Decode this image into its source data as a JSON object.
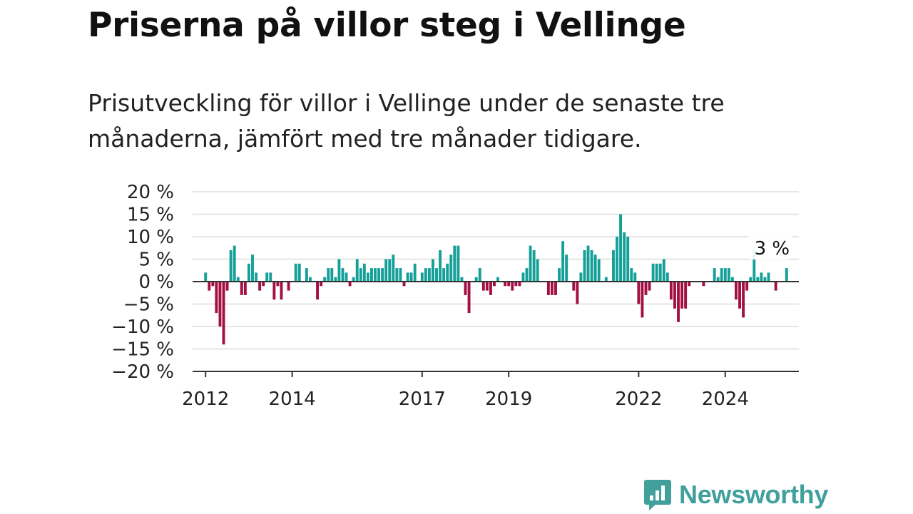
{
  "title": "Priserna på villor steg i Vellinge",
  "subtitle": "Prisutveckling för villor i Vellinge under de senaste tre månaderna, jämfört med tre månader tidigare.",
  "brand": {
    "name": "Newsworthy",
    "color": "#41a09b",
    "icon": "bar-chart-speech-bubble-icon"
  },
  "colors": {
    "positive": "#14a098",
    "negative": "#a30f42",
    "zero_line": "#333333",
    "grid": "#dddddd"
  },
  "chart_data": {
    "type": "bar",
    "ylim": [
      -20,
      20
    ],
    "yticks": [
      20,
      15,
      10,
      5,
      0,
      -5,
      -10,
      -15,
      -20
    ],
    "ytick_labels": [
      "20 %",
      "15 %",
      "10 %",
      "5 %",
      "0 %",
      "−5 %",
      "−10 %",
      "−15 %",
      "−20 %"
    ],
    "xticks": [
      "2012",
      "2014",
      "2017",
      "2019",
      "2022",
      "2024"
    ],
    "xlim_years": [
      2011.7,
      2025.7
    ],
    "annotation": {
      "text": "3 %",
      "year": 2025.08,
      "value": 3
    },
    "grid": true,
    "x_start_year": 2012,
    "values": [
      2,
      -2,
      -1,
      -7,
      -10,
      -14,
      -2,
      7,
      8,
      1,
      -3,
      -3,
      4,
      6,
      2,
      -2,
      -1,
      2,
      2,
      -4,
      -1,
      -4,
      0,
      -2,
      0,
      4,
      4,
      0,
      3,
      1,
      0,
      -4,
      -1,
      1,
      3,
      3,
      1,
      5,
      3,
      2,
      -1,
      1,
      5,
      3,
      4,
      2,
      3,
      3,
      3,
      3,
      5,
      5,
      6,
      3,
      3,
      -1,
      2,
      2,
      4,
      0,
      2,
      3,
      3,
      5,
      3,
      7,
      3,
      4,
      6,
      8,
      8,
      1,
      -3,
      -7,
      0,
      1,
      3,
      -2,
      -2,
      -3,
      -1,
      1,
      0,
      -1,
      -1,
      -2,
      -1,
      -1,
      2,
      3,
      8,
      7,
      5,
      0,
      0,
      -3,
      -3,
      -3,
      3,
      9,
      6,
      0,
      -2,
      -5,
      2,
      7,
      8,
      7,
      6,
      5,
      0,
      1,
      0,
      7,
      10,
      15,
      11,
      10,
      3,
      2,
      -5,
      -8,
      -3,
      -2,
      4,
      4,
      4,
      5,
      2,
      -4,
      -6,
      -9,
      -6,
      -6,
      -1,
      0,
      0,
      0,
      -1,
      0,
      0,
      3,
      1,
      3,
      3,
      3,
      1,
      -4,
      -6,
      -8,
      -2,
      1,
      7,
      1,
      2,
      1,
      2,
      0,
      -2,
      0,
      0,
      3
    ]
  }
}
